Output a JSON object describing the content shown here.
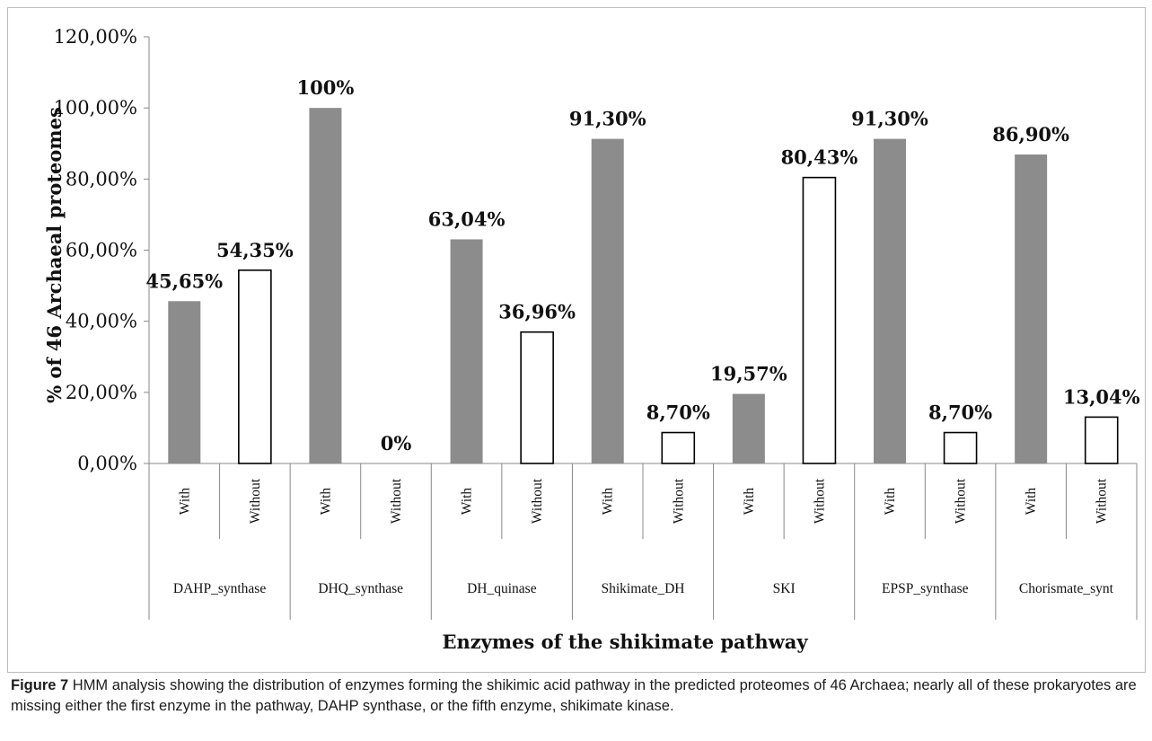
{
  "chart_data": {
    "type": "bar",
    "ylabel": "% of 46 Archaeal proteomes",
    "xlabel": "Enzymes of the shikimate pathway",
    "ylim": [
      0,
      120
    ],
    "yticks": [
      "0,00%",
      "20,00%",
      "40,00%",
      "60,00%",
      "80,00%",
      "100,00%",
      "120,00%"
    ],
    "grid": false,
    "colors": {
      "With": "#8c8c8c",
      "Without": "#ffffff",
      "outline": "#000000"
    },
    "groups": [
      "DAHP_synthase",
      "DHQ_synthase",
      "DH_quinase",
      "Shikimate_DH",
      "SKI",
      "EPSP_synthase",
      "Chorismate_synt"
    ],
    "bars": [
      {
        "group": "DAHP_synthase",
        "sub": "With",
        "value": 45.65,
        "label": "45,65%"
      },
      {
        "group": "DAHP_synthase",
        "sub": "Without",
        "value": 54.35,
        "label": "54,35%"
      },
      {
        "group": "DHQ_synthase",
        "sub": "With",
        "value": 100,
        "label": "100%"
      },
      {
        "group": "DHQ_synthase",
        "sub": "Without",
        "value": 0,
        "label": "0%"
      },
      {
        "group": "DH_quinase",
        "sub": "With",
        "value": 63.04,
        "label": "63,04%"
      },
      {
        "group": "DH_quinase",
        "sub": "Without",
        "value": 36.96,
        "label": "36,96%"
      },
      {
        "group": "Shikimate_DH",
        "sub": "With",
        "value": 91.3,
        "label": "91,30%"
      },
      {
        "group": "Shikimate_DH",
        "sub": "Without",
        "value": 8.7,
        "label": "8,70%"
      },
      {
        "group": "SKI",
        "sub": "With",
        "value": 19.57,
        "label": "19,57%"
      },
      {
        "group": "SKI",
        "sub": "Without",
        "value": 80.43,
        "label": "80,43%"
      },
      {
        "group": "EPSP_synthase",
        "sub": "With",
        "value": 91.3,
        "label": "91,30%"
      },
      {
        "group": "EPSP_synthase",
        "sub": "Without",
        "value": 8.7,
        "label": "8,70%"
      },
      {
        "group": "Chorismate_synt",
        "sub": "With",
        "value": 86.9,
        "label": "86,90%"
      },
      {
        "group": "Chorismate_synt",
        "sub": "Without",
        "value": 13.04,
        "label": "13,04%"
      }
    ]
  },
  "caption": {
    "label": "Figure 7",
    "text": " HMM analysis showing the distribution of enzymes forming the shikimic acid pathway in the predicted proteomes of 46 Archaea; nearly all of these prokaryotes are missing either the first enzyme in the pathway, DAHP synthase, or the fifth enzyme, shikimate kinase."
  }
}
